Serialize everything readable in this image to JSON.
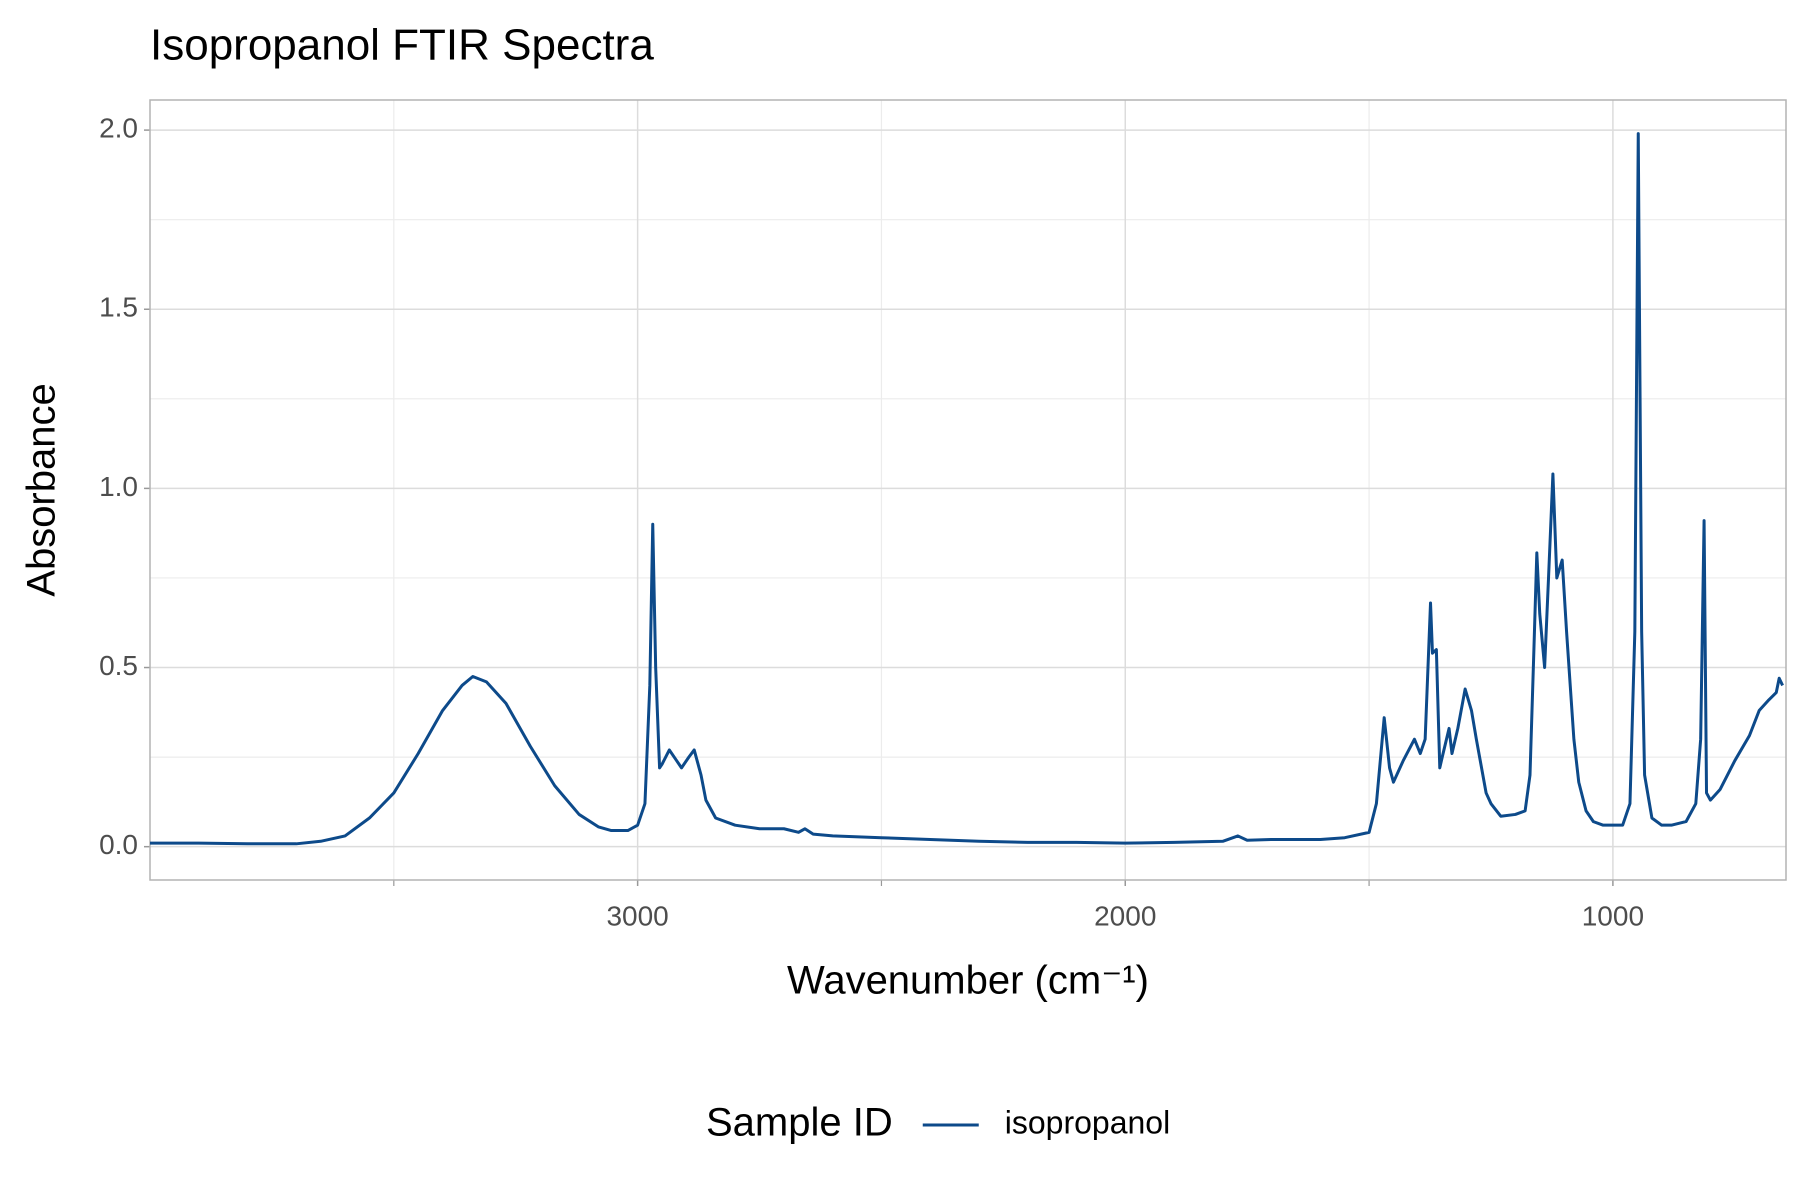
{
  "chart_data": {
    "type": "line",
    "title": "Isopropanol FTIR Spectra",
    "x_label": "Wavenumber (cm⁻¹)",
    "y_label": "Absorbance",
    "legend_title": "Sample ID",
    "x": [
      4000,
      3900,
      3800,
      3700,
      3650,
      3600,
      3550,
      3500,
      3450,
      3400,
      3360,
      3338,
      3310,
      3270,
      3220,
      3170,
      3120,
      3080,
      3054,
      3020,
      3000,
      2985,
      2975,
      2969,
      2963,
      2955,
      2950,
      2935,
      2920,
      2910,
      2895,
      2884,
      2870,
      2860,
      2840,
      2800,
      2750,
      2700,
      2670,
      2657,
      2640,
      2600,
      2500,
      2400,
      2300,
      2200,
      2100,
      2000,
      1900,
      1800,
      1769,
      1750,
      1700,
      1600,
      1550,
      1500,
      1485,
      1469,
      1458,
      1450,
      1430,
      1407,
      1395,
      1385,
      1374,
      1370,
      1362,
      1355,
      1350,
      1336,
      1330,
      1318,
      1303,
      1290,
      1280,
      1260,
      1250,
      1230,
      1200,
      1180,
      1170,
      1162,
      1156,
      1150,
      1140,
      1132,
      1123,
      1115,
      1104,
      1095,
      1080,
      1070,
      1055,
      1040,
      1020,
      1000,
      980,
      965,
      955,
      948,
      941,
      935,
      920,
      900,
      880,
      850,
      830,
      820,
      813,
      808,
      800,
      780,
      750,
      720,
      700,
      680,
      665,
      659,
      652
    ],
    "series": [
      {
        "name": "isopropanol",
        "color": "#0d4a8a",
        "values": [
          0.01,
          0.01,
          0.008,
          0.008,
          0.015,
          0.03,
          0.08,
          0.15,
          0.26,
          0.38,
          0.45,
          0.475,
          0.46,
          0.4,
          0.28,
          0.17,
          0.09,
          0.055,
          0.045,
          0.045,
          0.06,
          0.12,
          0.45,
          0.9,
          0.5,
          0.22,
          0.23,
          0.27,
          0.24,
          0.22,
          0.25,
          0.27,
          0.2,
          0.13,
          0.08,
          0.06,
          0.05,
          0.05,
          0.04,
          0.05,
          0.035,
          0.03,
          0.025,
          0.02,
          0.015,
          0.012,
          0.012,
          0.01,
          0.012,
          0.015,
          0.03,
          0.018,
          0.02,
          0.02,
          0.025,
          0.04,
          0.12,
          0.36,
          0.22,
          0.18,
          0.24,
          0.3,
          0.26,
          0.3,
          0.68,
          0.54,
          0.55,
          0.22,
          0.25,
          0.33,
          0.26,
          0.33,
          0.44,
          0.38,
          0.3,
          0.15,
          0.12,
          0.085,
          0.09,
          0.1,
          0.2,
          0.55,
          0.82,
          0.65,
          0.5,
          0.75,
          1.04,
          0.75,
          0.8,
          0.6,
          0.3,
          0.18,
          0.1,
          0.07,
          0.06,
          0.06,
          0.06,
          0.12,
          0.6,
          1.99,
          0.6,
          0.2,
          0.08,
          0.06,
          0.06,
          0.07,
          0.12,
          0.3,
          0.91,
          0.15,
          0.13,
          0.16,
          0.24,
          0.31,
          0.38,
          0.41,
          0.43,
          0.47,
          0.45
        ]
      }
    ],
    "xlim": [
      4000,
      645
    ],
    "xticks": [
      3000,
      2000,
      1000
    ],
    "x_minor_grid": [
      3500,
      2500,
      1500
    ],
    "ylim": [
      -0.093,
      2.084
    ],
    "yticks": [
      {
        "value": 0,
        "label": "0.0"
      },
      {
        "value": 0.5,
        "label": "0.5"
      },
      {
        "value": 1,
        "label": "1.0"
      },
      {
        "value": 1.5,
        "label": "1.5"
      },
      {
        "value": 2,
        "label": "2.0"
      }
    ],
    "y_minor_grid": [
      0.25,
      0.75,
      1.25,
      1.75
    ],
    "grid": true,
    "legend": "bottom"
  }
}
